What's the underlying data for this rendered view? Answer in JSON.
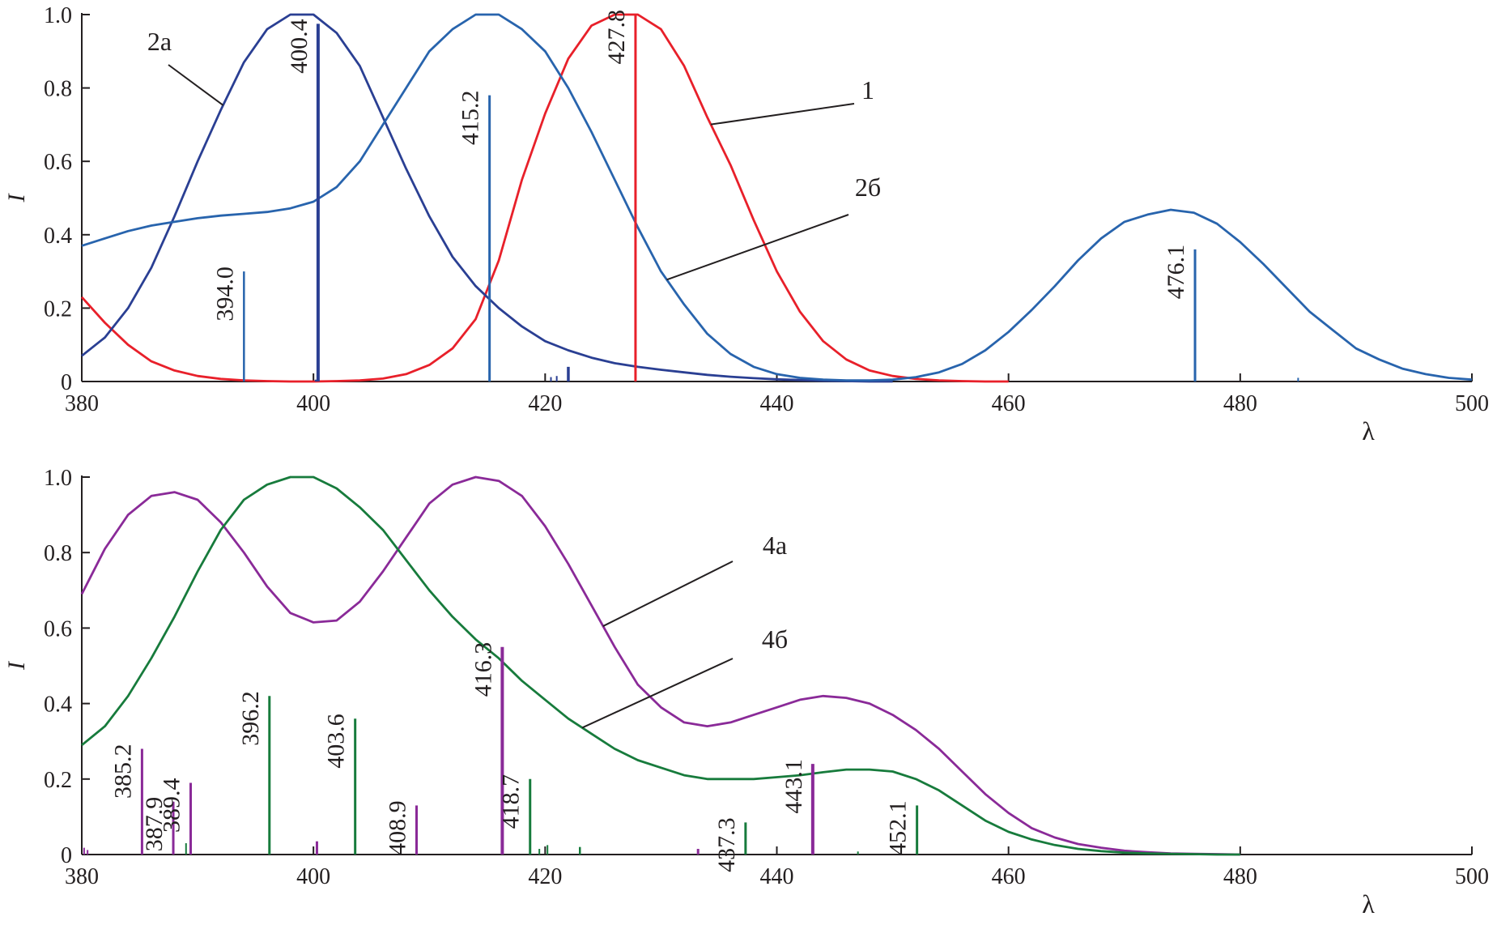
{
  "chart_data": [
    {
      "type": "line",
      "xlabel": "λ",
      "ylabel": "I",
      "xlim": [
        380,
        500
      ],
      "ylim": [
        0,
        1.0
      ],
      "x_ticks": [
        380,
        400,
        420,
        440,
        460,
        480,
        500
      ],
      "y_ticks": [
        0,
        0.2,
        0.4,
        0.6,
        0.8,
        1.0
      ],
      "x_tick_labels": [
        "380",
        "400",
        "420",
        "440",
        "460",
        "480",
        "500"
      ],
      "y_tick_labels": [
        "0",
        "0.2",
        "0.4",
        "0.6",
        "0.8",
        "1.0"
      ],
      "series": [
        {
          "name": "1",
          "color": "#e8202a",
          "x": [
            380,
            382,
            384,
            386,
            388,
            390,
            392,
            394,
            396,
            398,
            400,
            402,
            404,
            406,
            408,
            410,
            412,
            414,
            416,
            418,
            420,
            422,
            424,
            426,
            428,
            430,
            432,
            434,
            436,
            438,
            440,
            442,
            444,
            446,
            448,
            450,
            452,
            454,
            456,
            458,
            460
          ],
          "y": [
            0.23,
            0.16,
            0.1,
            0.055,
            0.03,
            0.015,
            0.007,
            0.003,
            0.001,
            0.0,
            0.0,
            0.001,
            0.003,
            0.008,
            0.02,
            0.045,
            0.09,
            0.17,
            0.33,
            0.55,
            0.73,
            0.88,
            0.97,
            1.0,
            1.0,
            0.96,
            0.86,
            0.72,
            0.59,
            0.44,
            0.3,
            0.19,
            0.11,
            0.06,
            0.03,
            0.015,
            0.007,
            0.003,
            0.001,
            0.0,
            0.0
          ]
        },
        {
          "name": "2а",
          "color": "#2a3f93",
          "x": [
            380,
            382,
            384,
            386,
            388,
            390,
            392,
            394,
            396,
            398,
            400,
            402,
            404,
            406,
            408,
            410,
            412,
            414,
            416,
            418,
            420,
            422,
            424,
            426,
            428,
            430,
            432,
            434,
            436,
            438,
            440,
            442,
            444,
            446,
            448,
            450
          ],
          "y": [
            0.07,
            0.12,
            0.2,
            0.31,
            0.45,
            0.6,
            0.74,
            0.87,
            0.96,
            1.0,
            1.0,
            0.95,
            0.86,
            0.72,
            0.58,
            0.45,
            0.34,
            0.26,
            0.2,
            0.15,
            0.11,
            0.085,
            0.065,
            0.05,
            0.04,
            0.032,
            0.025,
            0.018,
            0.013,
            0.009,
            0.006,
            0.004,
            0.002,
            0.001,
            0.0,
            0.0
          ]
        },
        {
          "name": "2б",
          "color": "#2864ad",
          "x": [
            380,
            382,
            384,
            386,
            388,
            390,
            392,
            394,
            396,
            398,
            400,
            402,
            404,
            406,
            408,
            410,
            412,
            414,
            416,
            418,
            420,
            422,
            424,
            426,
            428,
            430,
            432,
            434,
            436,
            438,
            440,
            442,
            444,
            446,
            448,
            450,
            452,
            454,
            456,
            458,
            460,
            462,
            464,
            466,
            468,
            470,
            472,
            474,
            476,
            478,
            480,
            482,
            484,
            486,
            488,
            490,
            492,
            494,
            496,
            498,
            500
          ],
          "y": [
            0.37,
            0.39,
            0.41,
            0.425,
            0.435,
            0.445,
            0.452,
            0.457,
            0.462,
            0.472,
            0.49,
            0.53,
            0.6,
            0.7,
            0.8,
            0.9,
            0.96,
            1.0,
            1.0,
            0.96,
            0.9,
            0.8,
            0.68,
            0.55,
            0.42,
            0.3,
            0.21,
            0.13,
            0.075,
            0.04,
            0.02,
            0.01,
            0.005,
            0.003,
            0.003,
            0.005,
            0.012,
            0.025,
            0.048,
            0.085,
            0.135,
            0.195,
            0.26,
            0.33,
            0.39,
            0.435,
            0.455,
            0.468,
            0.46,
            0.43,
            0.38,
            0.32,
            0.255,
            0.19,
            0.14,
            0.09,
            0.06,
            0.035,
            0.02,
            0.01,
            0.005
          ]
        }
      ],
      "sticks": [
        {
          "x": 394.0,
          "y": 0.3,
          "color": "#2864ad",
          "width": 2.5,
          "label": "394.0"
        },
        {
          "x": 400.2,
          "y": 0.005,
          "color": "#2a3f93",
          "width": 2.5,
          "label": ""
        },
        {
          "x": 400.4,
          "y": 0.975,
          "color": "#2a3f93",
          "width": 4,
          "label": "400.4"
        },
        {
          "x": 415.2,
          "y": 0.78,
          "color": "#2864ad",
          "width": 3,
          "label": "415.2"
        },
        {
          "x": 420.5,
          "y": 0.012,
          "color": "#2a3f93",
          "width": 2,
          "label": ""
        },
        {
          "x": 421.0,
          "y": 0.015,
          "color": "#2a3f93",
          "width": 2,
          "label": ""
        },
        {
          "x": 422.0,
          "y": 0.04,
          "color": "#2a3f93",
          "width": 3.5,
          "label": ""
        },
        {
          "x": 427.8,
          "y": 1.0,
          "color": "#e8202a",
          "width": 3,
          "label": "427.8"
        },
        {
          "x": 476.1,
          "y": 0.36,
          "color": "#2864ad",
          "width": 3,
          "label": "476.1"
        },
        {
          "x": 485.0,
          "y": 0.01,
          "color": "#2864ad",
          "width": 2,
          "label": ""
        }
      ],
      "curve_annotations": [
        {
          "text": "2а",
          "series": "2а",
          "at_x": 392.2
        },
        {
          "text": "1",
          "series": "1",
          "at_x": 434.3
        },
        {
          "text": "2б",
          "series": "2б",
          "at_x": 430.5
        }
      ]
    },
    {
      "type": "line",
      "xlabel": "λ",
      "ylabel": "I",
      "xlim": [
        380,
        500
      ],
      "ylim": [
        0,
        1.0
      ],
      "x_ticks": [
        380,
        400,
        420,
        440,
        460,
        480,
        500
      ],
      "y_ticks": [
        0,
        0.2,
        0.4,
        0.6,
        0.8,
        1.0
      ],
      "x_tick_labels": [
        "380",
        "400",
        "420",
        "440",
        "460",
        "480",
        "500"
      ],
      "y_tick_labels": [
        "0",
        "0.2",
        "0.4",
        "0.6",
        "0.8",
        "1.0"
      ],
      "series": [
        {
          "name": "4а",
          "color": "#8a2a98",
          "x": [
            380,
            382,
            384,
            386,
            388,
            390,
            392,
            394,
            396,
            398,
            400,
            402,
            404,
            406,
            408,
            410,
            412,
            414,
            416,
            418,
            420,
            422,
            424,
            426,
            428,
            430,
            432,
            434,
            436,
            438,
            440,
            442,
            444,
            446,
            448,
            450,
            452,
            454,
            456,
            458,
            460,
            462,
            464,
            466,
            468,
            470,
            472,
            474,
            476,
            478,
            480
          ],
          "y": [
            0.69,
            0.81,
            0.9,
            0.95,
            0.96,
            0.94,
            0.88,
            0.8,
            0.71,
            0.64,
            0.615,
            0.62,
            0.67,
            0.75,
            0.84,
            0.93,
            0.98,
            1.0,
            0.99,
            0.95,
            0.87,
            0.77,
            0.66,
            0.55,
            0.45,
            0.39,
            0.35,
            0.34,
            0.35,
            0.37,
            0.39,
            0.41,
            0.42,
            0.415,
            0.4,
            0.37,
            0.33,
            0.28,
            0.22,
            0.16,
            0.11,
            0.07,
            0.045,
            0.028,
            0.018,
            0.01,
            0.006,
            0.003,
            0.002,
            0.001,
            0.0
          ]
        },
        {
          "name": "4б",
          "color": "#177b3c",
          "x": [
            380,
            382,
            384,
            386,
            388,
            390,
            392,
            394,
            396,
            398,
            400,
            402,
            404,
            406,
            408,
            410,
            412,
            414,
            416,
            418,
            420,
            422,
            424,
            426,
            428,
            430,
            432,
            434,
            436,
            438,
            440,
            442,
            444,
            446,
            448,
            450,
            452,
            454,
            456,
            458,
            460,
            462,
            464,
            466,
            468,
            470,
            472,
            474,
            476,
            478,
            480
          ],
          "y": [
            0.29,
            0.34,
            0.42,
            0.52,
            0.63,
            0.75,
            0.86,
            0.94,
            0.98,
            1.0,
            1.0,
            0.97,
            0.92,
            0.86,
            0.78,
            0.7,
            0.63,
            0.57,
            0.52,
            0.46,
            0.41,
            0.36,
            0.32,
            0.28,
            0.25,
            0.23,
            0.21,
            0.2,
            0.2,
            0.2,
            0.205,
            0.21,
            0.218,
            0.225,
            0.225,
            0.22,
            0.2,
            0.17,
            0.13,
            0.09,
            0.06,
            0.04,
            0.025,
            0.015,
            0.009,
            0.005,
            0.003,
            0.002,
            0.001,
            0.0,
            0.0
          ]
        }
      ],
      "sticks": [
        {
          "x": 380.2,
          "y": 0.018,
          "color": "#8a2a98",
          "width": 2,
          "label": ""
        },
        {
          "x": 380.5,
          "y": 0.012,
          "color": "#8a2a98",
          "width": 2,
          "label": ""
        },
        {
          "x": 385.2,
          "y": 0.28,
          "color": "#8a2a98",
          "width": 3,
          "label": "385.2"
        },
        {
          "x": 387.9,
          "y": 0.14,
          "color": "#8a2a98",
          "width": 3,
          "label": "387.9"
        },
        {
          "x": 389.0,
          "y": 0.03,
          "color": "#177b3c",
          "width": 2,
          "label": ""
        },
        {
          "x": 389.4,
          "y": 0.19,
          "color": "#8a2a98",
          "width": 3,
          "label": "389.4"
        },
        {
          "x": 396.2,
          "y": 0.42,
          "color": "#177b3c",
          "width": 3,
          "label": "396.2"
        },
        {
          "x": 400.3,
          "y": 0.035,
          "color": "#8a2a98",
          "width": 3,
          "label": ""
        },
        {
          "x": 403.6,
          "y": 0.36,
          "color": "#177b3c",
          "width": 3,
          "label": "403.6"
        },
        {
          "x": 408.9,
          "y": 0.13,
          "color": "#8a2a98",
          "width": 3,
          "label": "408.9"
        },
        {
          "x": 416.3,
          "y": 0.55,
          "color": "#8a2a98",
          "width": 4,
          "label": "416.3"
        },
        {
          "x": 418.7,
          "y": 0.2,
          "color": "#177b3c",
          "width": 3,
          "label": "418.7"
        },
        {
          "x": 419.5,
          "y": 0.015,
          "color": "#177b3c",
          "width": 2,
          "label": ""
        },
        {
          "x": 420.2,
          "y": 0.025,
          "color": "#177b3c",
          "width": 2,
          "label": ""
        },
        {
          "x": 423.0,
          "y": 0.02,
          "color": "#177b3c",
          "width": 2.5,
          "label": ""
        },
        {
          "x": 433.2,
          "y": 0.015,
          "color": "#8a2a98",
          "width": 3,
          "label": ""
        },
        {
          "x": 437.3,
          "y": 0.085,
          "color": "#177b3c",
          "width": 3,
          "label": "437.3"
        },
        {
          "x": 443.1,
          "y": 0.24,
          "color": "#8a2a98",
          "width": 4,
          "label": "443.1"
        },
        {
          "x": 447.0,
          "y": 0.008,
          "color": "#177b3c",
          "width": 2,
          "label": ""
        },
        {
          "x": 452.1,
          "y": 0.13,
          "color": "#177b3c",
          "width": 3,
          "label": "452.1"
        }
      ],
      "curve_annotations": [
        {
          "text": "4а",
          "series": "4а",
          "at_x": 425.0
        },
        {
          "text": "4б",
          "series": "4б",
          "at_x": 423.2
        }
      ]
    }
  ]
}
